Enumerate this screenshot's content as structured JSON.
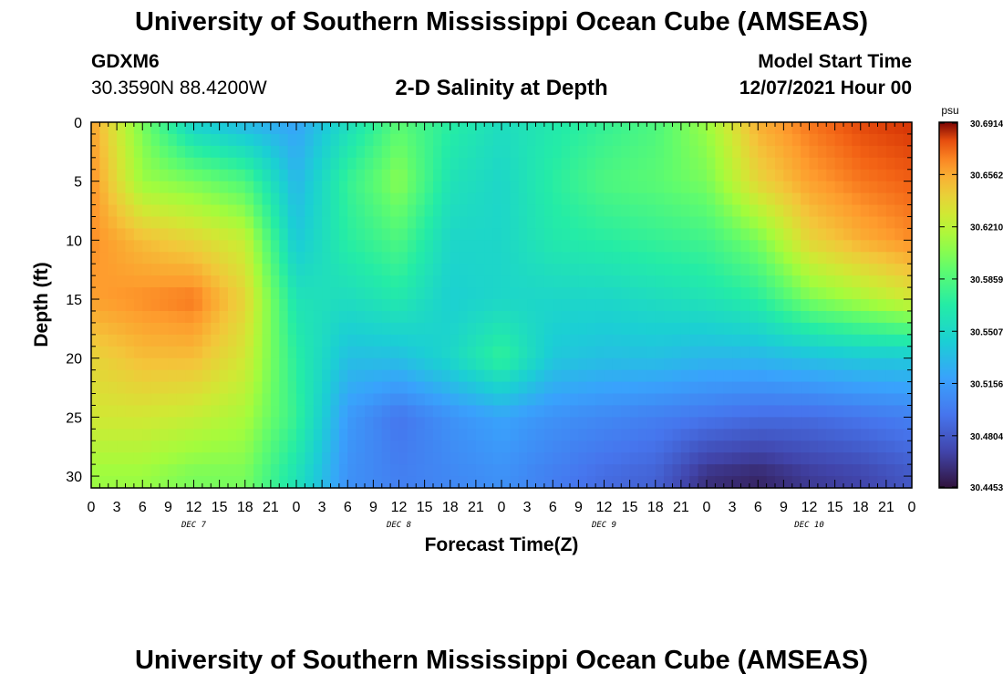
{
  "header": {
    "title": "University of Southern Mississippi Ocean Cube (AMSEAS)",
    "station_name": "GDXM6",
    "station_coords": "30.3590N  88.4200W",
    "subtitle": "2-D Salinity at Depth",
    "start_label": "Model Start Time",
    "start_value": "12/07/2021 Hour 00"
  },
  "footer": {
    "title": "University of Southern Mississippi Ocean Cube (AMSEAS)"
  },
  "chart_data": {
    "type": "heatmap",
    "title": "2-D Salinity at Depth",
    "xlabel": "Forecast Time(Z)",
    "ylabel": "Depth (ft)",
    "x_ticks": [
      "0",
      "3",
      "6",
      "9",
      "12",
      "15",
      "18",
      "21",
      "0",
      "3",
      "6",
      "9",
      "12",
      "15",
      "18",
      "21",
      "0",
      "3",
      "6",
      "9",
      "12",
      "15",
      "18",
      "21",
      "0",
      "3",
      "6",
      "9",
      "12",
      "15",
      "18",
      "21",
      "0"
    ],
    "x_day_labels": [
      "DEC 7",
      "DEC 8",
      "DEC 9",
      "DEC 10"
    ],
    "xlim": [
      0,
      96
    ],
    "y_ticks": [
      "0",
      "5",
      "10",
      "15",
      "20",
      "25",
      "30"
    ],
    "ylim": [
      0,
      31
    ],
    "colorbar": {
      "unit": "psu",
      "ticks": [
        "30.6914",
        "30.6562",
        "30.6210",
        "30.5859",
        "30.5507",
        "30.5156",
        "30.4804",
        "30.4453"
      ],
      "range": [
        30.4453,
        30.6914
      ]
    },
    "salinity_anchors": {
      "depths": [
        0,
        5,
        10,
        15,
        20,
        25,
        30
      ],
      "hours": [
        0,
        6,
        12,
        18,
        24,
        30,
        36,
        42,
        48,
        54,
        60,
        66,
        72,
        78,
        84,
        90,
        96
      ],
      "values": [
        [
          30.66,
          30.6,
          30.545,
          30.53,
          30.52,
          30.555,
          30.59,
          30.57,
          30.555,
          30.565,
          30.575,
          30.585,
          30.61,
          30.655,
          30.67,
          30.68,
          30.685
        ],
        [
          30.665,
          30.61,
          30.6,
          30.585,
          30.53,
          30.575,
          30.605,
          30.56,
          30.55,
          30.57,
          30.585,
          30.59,
          30.6,
          30.64,
          30.66,
          30.67,
          30.675
        ],
        [
          30.665,
          30.65,
          30.64,
          30.625,
          30.54,
          30.57,
          30.585,
          30.55,
          30.55,
          30.565,
          30.57,
          30.575,
          30.58,
          30.6,
          30.64,
          30.655,
          30.665
        ],
        [
          30.66,
          30.665,
          30.67,
          30.64,
          30.56,
          30.555,
          30.565,
          30.545,
          30.55,
          30.55,
          30.55,
          30.555,
          30.56,
          30.57,
          30.6,
          30.615,
          30.63
        ],
        [
          30.64,
          30.65,
          30.65,
          30.63,
          30.57,
          30.535,
          30.535,
          30.55,
          30.575,
          30.54,
          30.535,
          30.535,
          30.53,
          30.53,
          30.535,
          30.54,
          30.54
        ],
        [
          30.63,
          30.63,
          30.625,
          30.615,
          30.575,
          30.515,
          30.495,
          30.51,
          30.52,
          30.51,
          30.505,
          30.5,
          30.495,
          30.49,
          30.49,
          30.495,
          30.5
        ],
        [
          30.61,
          30.61,
          30.6,
          30.6,
          30.56,
          30.51,
          30.5,
          30.505,
          30.51,
          30.5,
          30.49,
          30.485,
          30.46,
          30.455,
          30.465,
          30.47,
          30.48
        ]
      ]
    }
  }
}
